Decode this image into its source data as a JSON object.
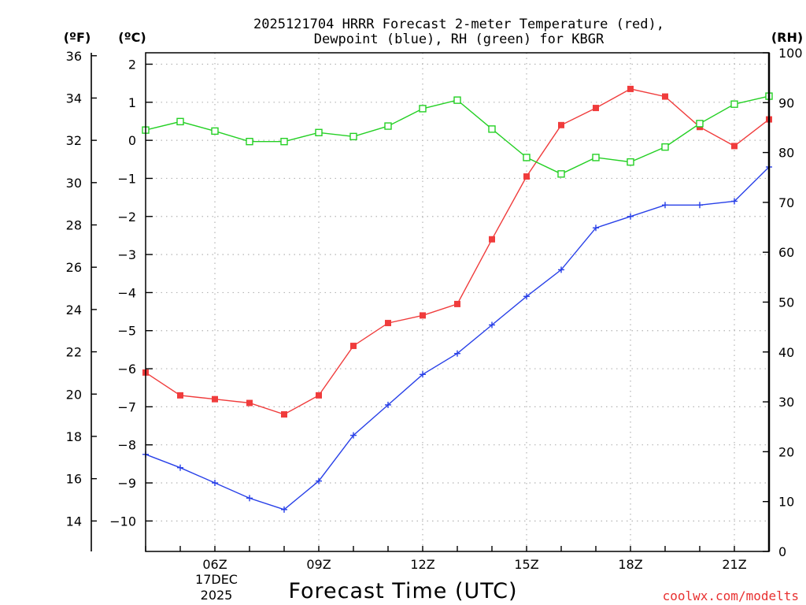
{
  "chart_data": {
    "type": "line",
    "title_line1": "2025121704 HRRR Forecast 2-meter Temperature (red),",
    "title_line2": "Dewpoint (blue), RH (green) for KBGR",
    "unit_f": "(ºF)",
    "unit_c": "(ºC)",
    "unit_rh": "(RH)",
    "xlabel": "Forecast Time (UTC)",
    "credit": "coolwx.com/modelts",
    "credit_color": "#e83030",
    "x_hours": [
      4,
      5,
      6,
      7,
      8,
      9,
      10,
      11,
      12,
      13,
      14,
      15,
      16,
      17,
      18,
      19,
      20,
      21,
      22
    ],
    "x_range": [
      4,
      22
    ],
    "x_ticks": [
      {
        "hour": 6,
        "label": "06Z"
      },
      {
        "hour": 9,
        "label": "09Z"
      },
      {
        "hour": 12,
        "label": "12Z"
      },
      {
        "hour": 15,
        "label": "15Z"
      },
      {
        "hour": 18,
        "label": "18Z"
      },
      {
        "hour": 21,
        "label": "21Z"
      }
    ],
    "date_line1": "17DEC",
    "date_line2": "2025",
    "c_range": [
      -10.8,
      2.3
    ],
    "c_ticks": [
      2,
      1,
      0,
      -1,
      -2,
      -3,
      -4,
      -5,
      -6,
      -7,
      -8,
      -9,
      -10
    ],
    "c_tick_labels": [
      "2",
      "1",
      "0",
      "−1",
      "−2",
      "−3",
      "−4",
      "−5",
      "−6",
      "−7",
      "−8",
      "−9",
      "−10"
    ],
    "f_ticks": [
      36,
      34,
      32,
      30,
      28,
      26,
      24,
      22,
      20,
      18,
      16,
      14
    ],
    "f_tick_labels": [
      "36",
      "34",
      "32",
      "30",
      "28",
      "26",
      "24",
      "22",
      "20",
      "18",
      "16",
      "14"
    ],
    "rh_range": [
      0,
      100
    ],
    "rh_ticks": [
      100,
      90,
      80,
      70,
      60,
      50,
      40,
      30,
      20,
      10,
      0
    ],
    "rh_tick_labels": [
      "100",
      "90",
      "80",
      "70",
      "60",
      "50",
      "40",
      "30",
      "20",
      "10",
      "0"
    ],
    "series": [
      {
        "name": "2-meter Temperature",
        "axis": "celsius",
        "color": "#f03c3c",
        "marker": "filled-square",
        "values": [
          -6.1,
          -6.7,
          -6.8,
          -6.9,
          -7.2,
          -6.7,
          -5.4,
          -4.8,
          -4.6,
          -4.3,
          -2.6,
          -0.95,
          0.4,
          0.85,
          1.35,
          1.15,
          0.35,
          -0.15,
          0.55
        ]
      },
      {
        "name": "Dewpoint",
        "axis": "celsius",
        "color": "#2840e8",
        "marker": "plus",
        "values": [
          -8.25,
          -8.6,
          -9.0,
          -9.4,
          -9.7,
          -8.95,
          -7.75,
          -6.95,
          -6.15,
          -5.6,
          -4.85,
          -4.1,
          -3.4,
          -2.3,
          -2.0,
          -1.7,
          -1.7,
          -1.6,
          -0.7
        ]
      },
      {
        "name": "RH",
        "axis": "rh",
        "color": "#24d024",
        "marker": "open-square",
        "values": [
          84.5,
          86.2,
          84.3,
          82.2,
          82.2,
          84.0,
          83.2,
          85.3,
          88.8,
          90.5,
          84.7,
          79.0,
          75.7,
          79.0,
          78.1,
          81.1,
          85.8,
          89.7,
          91.3
        ]
      }
    ]
  }
}
